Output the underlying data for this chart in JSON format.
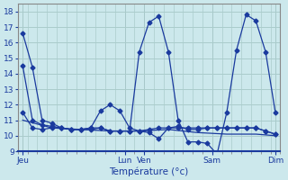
{
  "background_color": "#cce8ec",
  "grid_color": "#aacccc",
  "line_color": "#1a3a9e",
  "xlabel": "Température (°c)",
  "xlim": [
    0,
    108
  ],
  "ylim": [
    9,
    18.5
  ],
  "yticks": [
    9,
    10,
    11,
    12,
    13,
    14,
    15,
    16,
    17,
    18
  ],
  "xtick_major_positions": [
    2,
    44,
    52,
    80,
    106
  ],
  "xtick_major_labels": [
    "Jeu",
    "Lun",
    "Ven",
    "Sam",
    "Dim"
  ],
  "series": [
    {
      "x": [
        2,
        6,
        10,
        14,
        18,
        22,
        26,
        30,
        34,
        38,
        42,
        46,
        50,
        54,
        58,
        62,
        66,
        70,
        74,
        78,
        82,
        86,
        90,
        94,
        98,
        102,
        106
      ],
      "y": [
        16.6,
        14.4,
        11.0,
        10.8,
        10.5,
        10.4,
        10.4,
        10.4,
        10.5,
        10.3,
        10.3,
        10.3,
        15.4,
        17.3,
        17.7,
        15.4,
        11.0,
        9.6,
        9.6,
        9.5,
        8.8,
        11.5,
        15.5,
        17.8,
        17.4,
        15.4,
        11.5
      ],
      "marker": "D",
      "ms": 2.5
    },
    {
      "x": [
        2,
        6,
        10,
        14,
        18,
        22,
        26,
        30,
        34,
        38,
        42,
        46,
        50,
        54,
        58,
        62,
        66,
        70,
        74,
        78,
        82,
        86,
        90,
        94,
        98,
        102,
        106
      ],
      "y": [
        14.5,
        11.0,
        10.7,
        10.6,
        10.5,
        10.4,
        10.4,
        10.5,
        10.5,
        10.3,
        10.3,
        10.3,
        10.3,
        10.4,
        10.5,
        10.5,
        10.5,
        10.5,
        10.5,
        10.5,
        10.5,
        10.5,
        10.5,
        10.5,
        10.5,
        10.3,
        10.1
      ],
      "marker": "D",
      "ms": 2.5
    },
    {
      "x": [
        2,
        6,
        10,
        14,
        18,
        22,
        26,
        30,
        34,
        38,
        42,
        46,
        50,
        54,
        58,
        62,
        66,
        70,
        74,
        78,
        82,
        86,
        90,
        94,
        98,
        102,
        106
      ],
      "y": [
        11.5,
        10.5,
        10.4,
        10.5,
        10.5,
        10.4,
        10.4,
        10.5,
        11.6,
        12.0,
        11.6,
        10.5,
        10.3,
        10.2,
        9.8,
        10.5,
        10.6,
        10.4,
        10.4,
        10.5,
        10.5,
        10.5,
        10.5,
        10.5,
        10.5,
        10.3,
        10.1
      ],
      "marker": "D",
      "ms": 2.5
    },
    {
      "x": [
        2,
        14,
        26,
        38,
        50,
        62,
        74,
        86,
        98,
        106
      ],
      "y": [
        11.0,
        10.5,
        10.4,
        10.3,
        10.3,
        10.4,
        10.2,
        10.1,
        10.1,
        10.0
      ],
      "marker": null,
      "ms": null
    }
  ]
}
